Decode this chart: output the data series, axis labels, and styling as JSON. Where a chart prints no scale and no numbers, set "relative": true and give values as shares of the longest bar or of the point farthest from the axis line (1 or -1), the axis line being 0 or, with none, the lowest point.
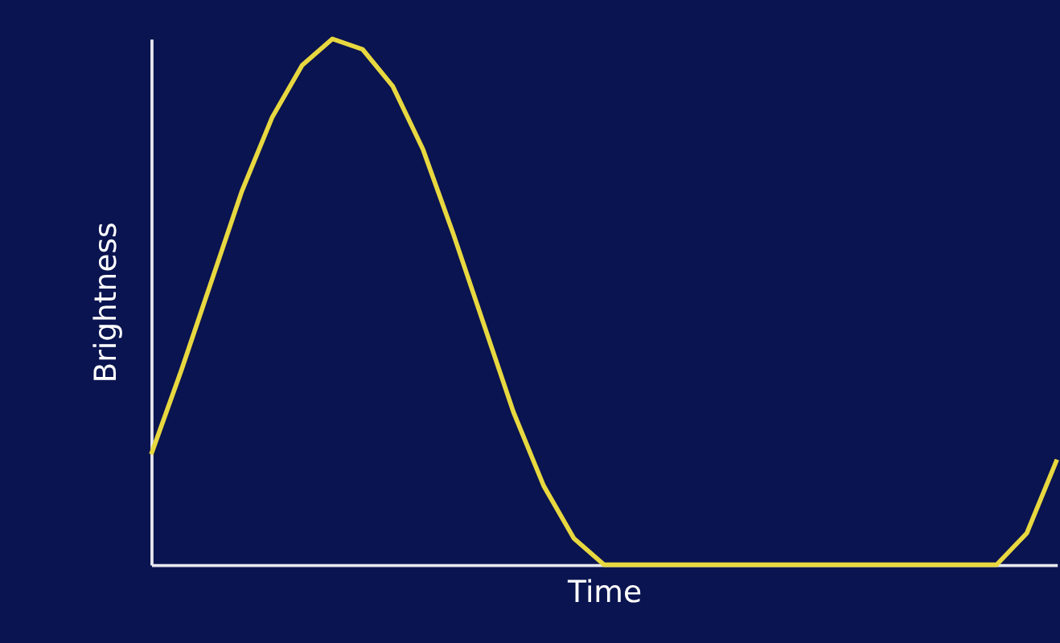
{
  "chart_data": {
    "type": "line",
    "relative": true,
    "xlabel": "Time",
    "ylabel": "Brightness",
    "grid": false,
    "tick_labels": false,
    "line_style": "solid",
    "categories": [
      null,
      null,
      null,
      null,
      null,
      null,
      null,
      null,
      null,
      null,
      null,
      null,
      null,
      null,
      null,
      null,
      null,
      null,
      null,
      null,
      null,
      null,
      null,
      null,
      null,
      null,
      null,
      null,
      null,
      null,
      null
    ],
    "series": [
      {
        "color": "#e8d840",
        "values": [
          0.21,
          0.37,
          0.54,
          0.71,
          0.85,
          0.95,
          1.0,
          0.98,
          0.91,
          0.79,
          0.63,
          0.46,
          0.29,
          0.15,
          0.05,
          0.0,
          0.0,
          0.0,
          0.0,
          0.0,
          0.0,
          0.0,
          0.0,
          0.0,
          0.0,
          0.0,
          0.0,
          0.0,
          0.0,
          0.06,
          0.2
        ]
      }
    ]
  }
}
